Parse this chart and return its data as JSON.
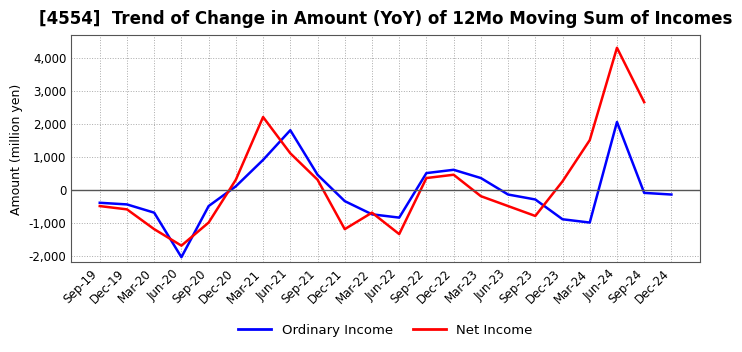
{
  "title": "[4554]  Trend of Change in Amount (YoY) of 12Mo Moving Sum of Incomes",
  "ylabel": "Amount (million yen)",
  "ylim": [
    -2200,
    4700
  ],
  "yticks": [
    -2000,
    -1000,
    0,
    1000,
    2000,
    3000,
    4000
  ],
  "background_color": "#ffffff",
  "grid_color": "#aaaaaa",
  "labels": [
    "Sep-19",
    "Dec-19",
    "Mar-20",
    "Jun-20",
    "Sep-20",
    "Dec-20",
    "Mar-21",
    "Jun-21",
    "Sep-21",
    "Dec-21",
    "Mar-22",
    "Jun-22",
    "Sep-22",
    "Dec-22",
    "Mar-23",
    "Jun-23",
    "Sep-23",
    "Dec-23",
    "Mar-24",
    "Jun-24",
    "Sep-24",
    "Dec-24"
  ],
  "ordinary_income": [
    -400,
    -450,
    -700,
    -2050,
    -500,
    100,
    900,
    1800,
    450,
    -350,
    -750,
    -850,
    500,
    600,
    350,
    -150,
    -300,
    -900,
    -1000,
    2050,
    -100,
    -150
  ],
  "net_income": [
    -500,
    -600,
    -1200,
    -1700,
    -1000,
    300,
    2200,
    1100,
    300,
    -1200,
    -700,
    -1350,
    350,
    450,
    -200,
    -500,
    -800,
    250,
    1500,
    4300,
    2650,
    null
  ],
  "ordinary_color": "#0000ff",
  "net_color": "#ff0000",
  "legend_labels": [
    "Ordinary Income",
    "Net Income"
  ],
  "title_fontsize": 12,
  "axis_fontsize": 9,
  "tick_fontsize": 8.5
}
